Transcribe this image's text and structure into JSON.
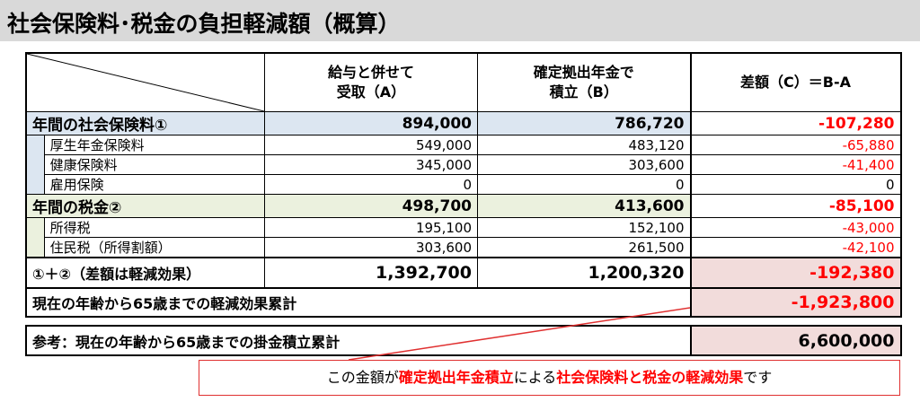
{
  "title": "社会保険料･税金の負担軽減額（概算）",
  "headers": {
    "col_a": [
      "給与と併せて",
      "受取（A）"
    ],
    "col_b": [
      "確定拠出年金で",
      "積立（B）"
    ],
    "col_c": "差額（C）＝B-A"
  },
  "rows": [
    {
      "label": "年間の社会保険料①",
      "a": "894,000",
      "b": "786,720",
      "c": "-107,280",
      "kind": "section1"
    },
    {
      "label": "厚生年金保険料",
      "a": "549,000",
      "b": "483,120",
      "c": "-65,880",
      "kind": "item1"
    },
    {
      "label": "健康保険料",
      "a": "345,000",
      "b": "303,600",
      "c": "-41,400",
      "kind": "item1"
    },
    {
      "label": "雇用保険",
      "a": "0",
      "b": "0",
      "c": "0",
      "kind": "item1"
    },
    {
      "label": "年間の税金②",
      "a": "498,700",
      "b": "413,600",
      "c": "-85,100",
      "kind": "section2"
    },
    {
      "label": "所得税",
      "a": "195,100",
      "b": "152,100",
      "c": "-43,000",
      "kind": "item2"
    },
    {
      "label": "住民税（所得割額）",
      "a": "303,600",
      "b": "261,500",
      "c": "-42,100",
      "kind": "item2"
    }
  ],
  "total": {
    "label": "①＋②（差額は軽減効果）",
    "a": "1,392,700",
    "b": "1,200,320",
    "c": "-192,380"
  },
  "cumulative": {
    "label": "現在の年齢から65歳までの軽減効果累計",
    "c": "-1,923,800"
  },
  "reference": {
    "label": "参考：現在の年齢から65歳までの掛金積立累計",
    "c": "6,600,000"
  },
  "note": {
    "p1": "この金額が",
    "h1": "確定拠出年金積立",
    "p2": "による",
    "h2": "社会保険料と税金の軽減効果",
    "p3": "です"
  },
  "colors": {
    "red": "#ff0000",
    "blue_section": "#dce6f1",
    "green_section": "#ebf1de",
    "pink": "#f2dcdb",
    "title_bg": "#d9d9d9"
  }
}
